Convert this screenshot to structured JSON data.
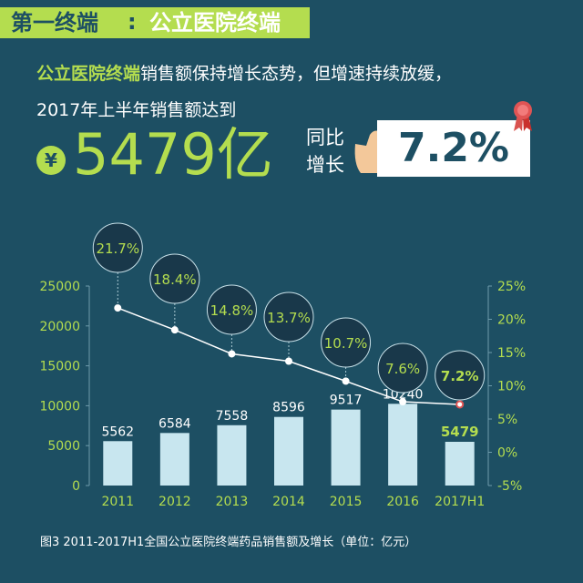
{
  "header": {
    "part1": "第一终端",
    "separator": ":",
    "part2": "公立医院终端"
  },
  "intro": {
    "highlight": "公立医院终端",
    "line1_rest": "销售额保持增长态势，但增速持续放缓，",
    "line2": "2017年上半年销售额达到"
  },
  "headline": {
    "currency_symbol": "¥",
    "amount": "5479亿",
    "yoy_label": "同比增长",
    "growth": "7.2%"
  },
  "caption": "图3  2011-2017H1全国公立医院终端药品销售额及增长（单位：亿元）",
  "colors": {
    "background": "#1d4f63",
    "accent": "#b4dd4f",
    "bar": "#c8e6ef",
    "text": "#ffffff"
  },
  "chart_data": {
    "type": "bar",
    "categories": [
      "2011",
      "2012",
      "2013",
      "2014",
      "2015",
      "2016",
      "2017H1"
    ],
    "series": [
      {
        "values": [
          5562,
          6584,
          7558,
          8596,
          9517,
          10240,
          5479
        ],
        "chart": "bar",
        "axis": "left"
      },
      {
        "values": [
          21.7,
          18.4,
          14.8,
          13.7,
          10.7,
          7.6,
          7.2
        ],
        "chart": "line",
        "axis": "right"
      }
    ],
    "bar_labels": [
      "5562",
      "6584",
      "7558",
      "8596",
      "9517",
      "10240",
      "5479"
    ],
    "growth_labels": [
      "21.7%",
      "18.4%",
      "14.8%",
      "13.7%",
      "10.7%",
      "7.6%",
      "7.2%"
    ],
    "ylim": [
      0,
      25000
    ],
    "y_ticks": [
      "0",
      "5000",
      "10000",
      "15000",
      "20000",
      "25000"
    ],
    "y2lim": [
      -5,
      25
    ],
    "y2_ticks": [
      "-5%",
      "0%",
      "5%",
      "10%",
      "15%",
      "20%",
      "25%"
    ],
    "legend": "none",
    "grid": false
  }
}
